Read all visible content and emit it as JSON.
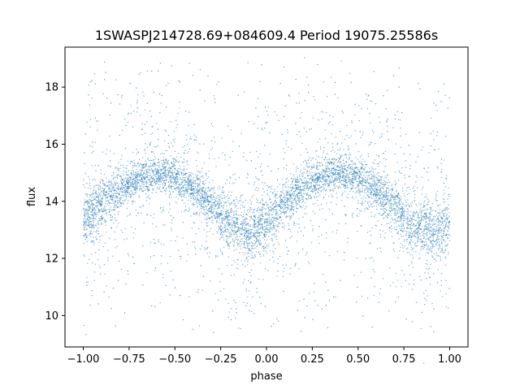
{
  "chart_data": {
    "type": "scatter",
    "title": "1SWASPJ214728.69+084609.4 Period 19075.25586s",
    "xlabel": "phase",
    "ylabel": "flux",
    "xlim": [
      -1.1,
      1.1
    ],
    "ylim": [
      8.9,
      19.4
    ],
    "x_ticks": [
      -1.0,
      -0.75,
      -0.5,
      -0.25,
      0.0,
      0.25,
      0.5,
      0.75,
      1.0
    ],
    "x_tick_labels": [
      "−1.00",
      "−0.75",
      "−0.50",
      "−0.25",
      "0.00",
      "0.25",
      "0.50",
      "0.75",
      "1.00"
    ],
    "y_ticks": [
      10,
      12,
      14,
      16,
      18
    ],
    "y_tick_labels": [
      "10",
      "12",
      "14",
      "16",
      "18"
    ],
    "grid": false,
    "legend": "none",
    "point_color": "#1f77b4",
    "series": [
      {
        "phase_x": [
          -1.0,
          -0.9,
          -0.8,
          -0.7,
          -0.6,
          -0.5,
          -0.4,
          -0.3,
          -0.2,
          -0.1,
          0.0,
          0.1,
          0.2,
          0.3,
          0.4,
          0.5,
          0.6,
          0.7,
          0.8,
          0.9,
          1.0
        ],
        "center_flux": [
          13.4,
          13.9,
          14.4,
          14.8,
          15.0,
          14.8,
          14.4,
          13.8,
          13.2,
          12.8,
          13.3,
          13.9,
          14.5,
          14.9,
          15.0,
          14.8,
          14.4,
          13.8,
          13.1,
          12.9,
          13.2
        ],
        "band_half_width": [
          0.9,
          0.8,
          0.7,
          0.6,
          0.6,
          0.6,
          0.6,
          0.7,
          0.8,
          0.9,
          0.8,
          0.7,
          0.6,
          0.6,
          0.6,
          0.6,
          0.7,
          0.8,
          0.9,
          0.9,
          0.9
        ],
        "outlier_range": [
          9.4,
          19.0
        ]
      }
    ]
  }
}
